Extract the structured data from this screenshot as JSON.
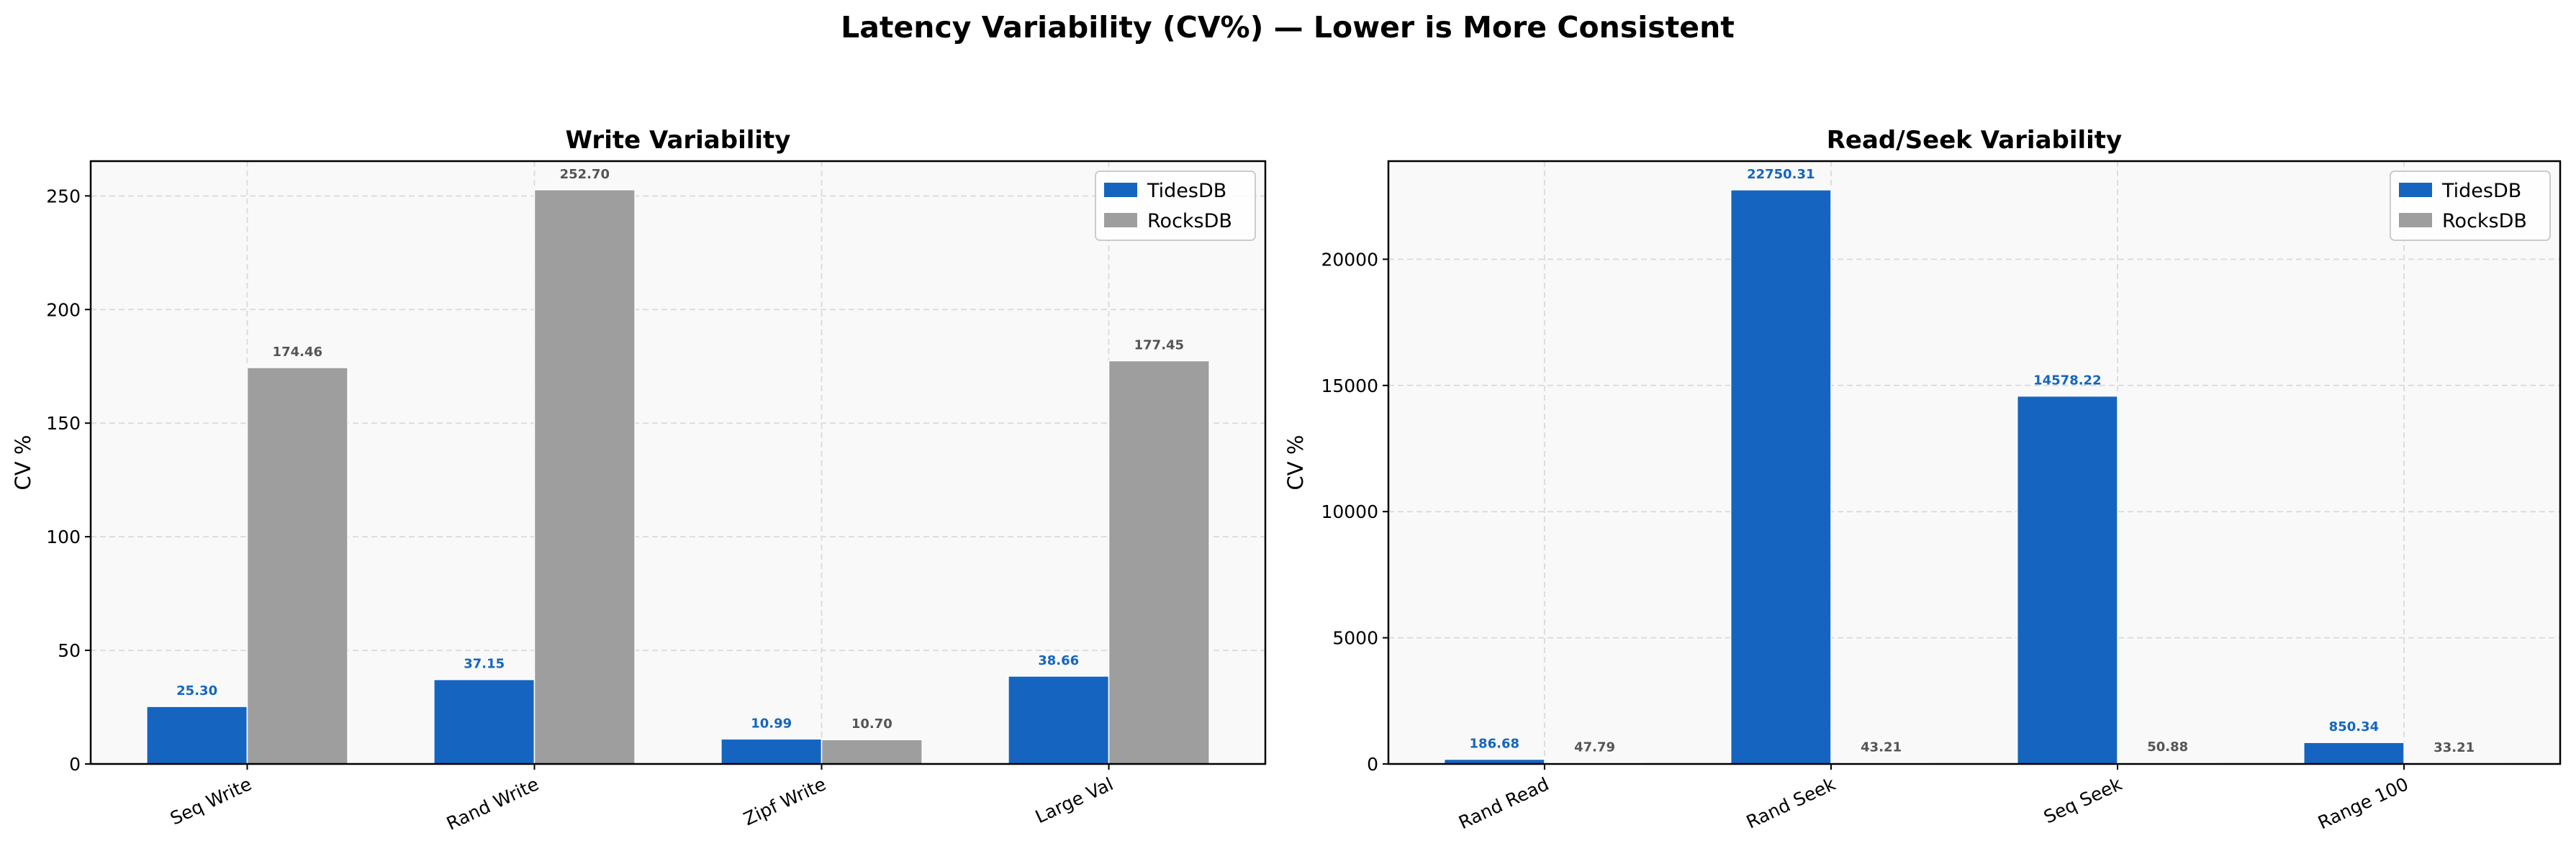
{
  "title": "Latency Variability (CV%) — Lower is More Consistent",
  "colors": {
    "TidesDB": "#1565c0",
    "RocksDB": "#9e9e9e",
    "TidesDB_label": "#1565c0",
    "RocksDB_label": "#555555",
    "axes_bg": "#f9f9f9",
    "grid": "#dddddd"
  },
  "chart_data": [
    {
      "type": "bar",
      "title": "Write Variability",
      "ylabel": "CV %",
      "xlabel": "",
      "categories": [
        "Seq Write",
        "Rand Write",
        "Zipf Write",
        "Large Val"
      ],
      "series": [
        {
          "name": "TidesDB",
          "values": [
            25.3,
            37.15,
            10.99,
            38.66
          ]
        },
        {
          "name": "RocksDB",
          "values": [
            174.46,
            252.7,
            10.7,
            177.45
          ]
        }
      ],
      "data_labels": [
        [
          "25.30",
          "37.15",
          "10.99",
          "38.66"
        ],
        [
          "174.46",
          "252.70",
          "10.70",
          "177.45"
        ]
      ],
      "ylim": [
        0,
        265.3
      ],
      "yticks": [
        0,
        50,
        100,
        150,
        200,
        250
      ],
      "grid": true,
      "legend": "upper-right"
    },
    {
      "type": "bar",
      "title": "Read/Seek Variability",
      "ylabel": "CV %",
      "xlabel": "",
      "categories": [
        "Rand Read",
        "Rand Seek",
        "Seq Seek",
        "Range 100"
      ],
      "series": [
        {
          "name": "TidesDB",
          "values": [
            186.68,
            22750.31,
            14578.22,
            850.34
          ]
        },
        {
          "name": "RocksDB",
          "values": [
            47.79,
            43.21,
            50.88,
            33.21
          ]
        }
      ],
      "data_labels": [
        [
          "186.68",
          "22750.31",
          "14578.22",
          "850.34"
        ],
        [
          "47.79",
          "43.21",
          "50.88",
          "33.21"
        ]
      ],
      "ylim": [
        0,
        23888
      ],
      "yticks": [
        0,
        5000,
        10000,
        15000,
        20000
      ],
      "grid": true,
      "legend": "upper-right"
    }
  ]
}
